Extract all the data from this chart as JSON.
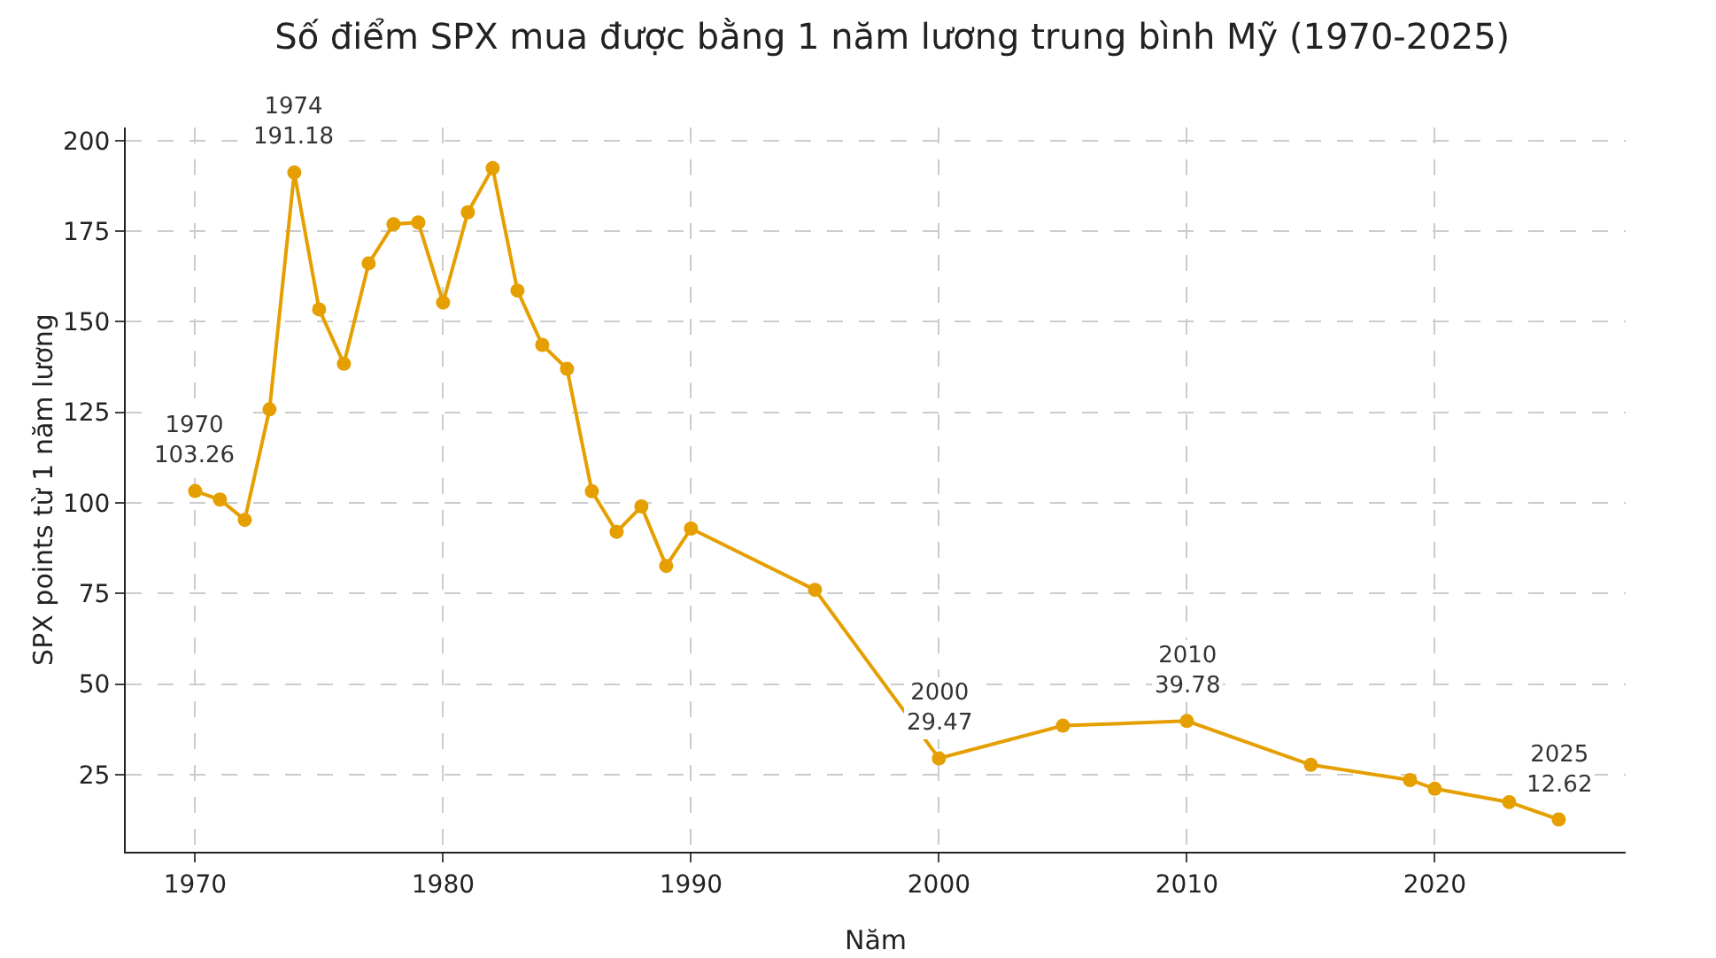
{
  "chart_data": {
    "type": "line",
    "title": "Số điểm SPX mua được bằng 1 năm lương trung bình Mỹ (1970-2025)",
    "xlabel": "Năm",
    "ylabel": "SPX points từ 1 năm lương",
    "x": [
      1970,
      1971,
      1972,
      1973,
      1974,
      1975,
      1976,
      1977,
      1978,
      1979,
      1980,
      1981,
      1982,
      1983,
      1984,
      1985,
      1986,
      1987,
      1988,
      1989,
      1990,
      1995,
      2000,
      2005,
      2010,
      2015,
      2019,
      2020,
      2023,
      2025
    ],
    "series": [
      {
        "color": "#e69f00",
        "values": [
          103.26,
          100.9,
          95.3,
          125.8,
          191.18,
          153.4,
          138.4,
          166.1,
          176.9,
          177.4,
          155.3,
          180.2,
          192.4,
          158.6,
          143.6,
          137.0,
          103.2,
          92.0,
          99.0,
          82.6,
          92.9,
          76.0,
          29.47,
          38.5,
          39.78,
          27.7,
          23.5,
          21.1,
          17.4,
          12.62
        ]
      }
    ],
    "xlim": [
      1967.2,
      2027.7
    ],
    "ylim": [
      3.7,
      203.6
    ],
    "xticks": [
      1970,
      1980,
      1990,
      2000,
      2010,
      2020
    ],
    "yticks": [
      25,
      50,
      75,
      100,
      125,
      150,
      175,
      200
    ],
    "grid": true,
    "marker": "circle",
    "line_style": "solid",
    "annotations": [
      {
        "text": "1970\n103.26",
        "x": 1970,
        "y": 103.26
      },
      {
        "text": "1974\n191.18",
        "x": 1974,
        "y": 191.18
      },
      {
        "text": "2000\n29.47",
        "x": 2000,
        "y": 29.47
      },
      {
        "text": "2010\n39.78",
        "x": 2010,
        "y": 39.78
      },
      {
        "text": "2025\n12.62",
        "x": 2025,
        "y": 12.62
      }
    ]
  }
}
